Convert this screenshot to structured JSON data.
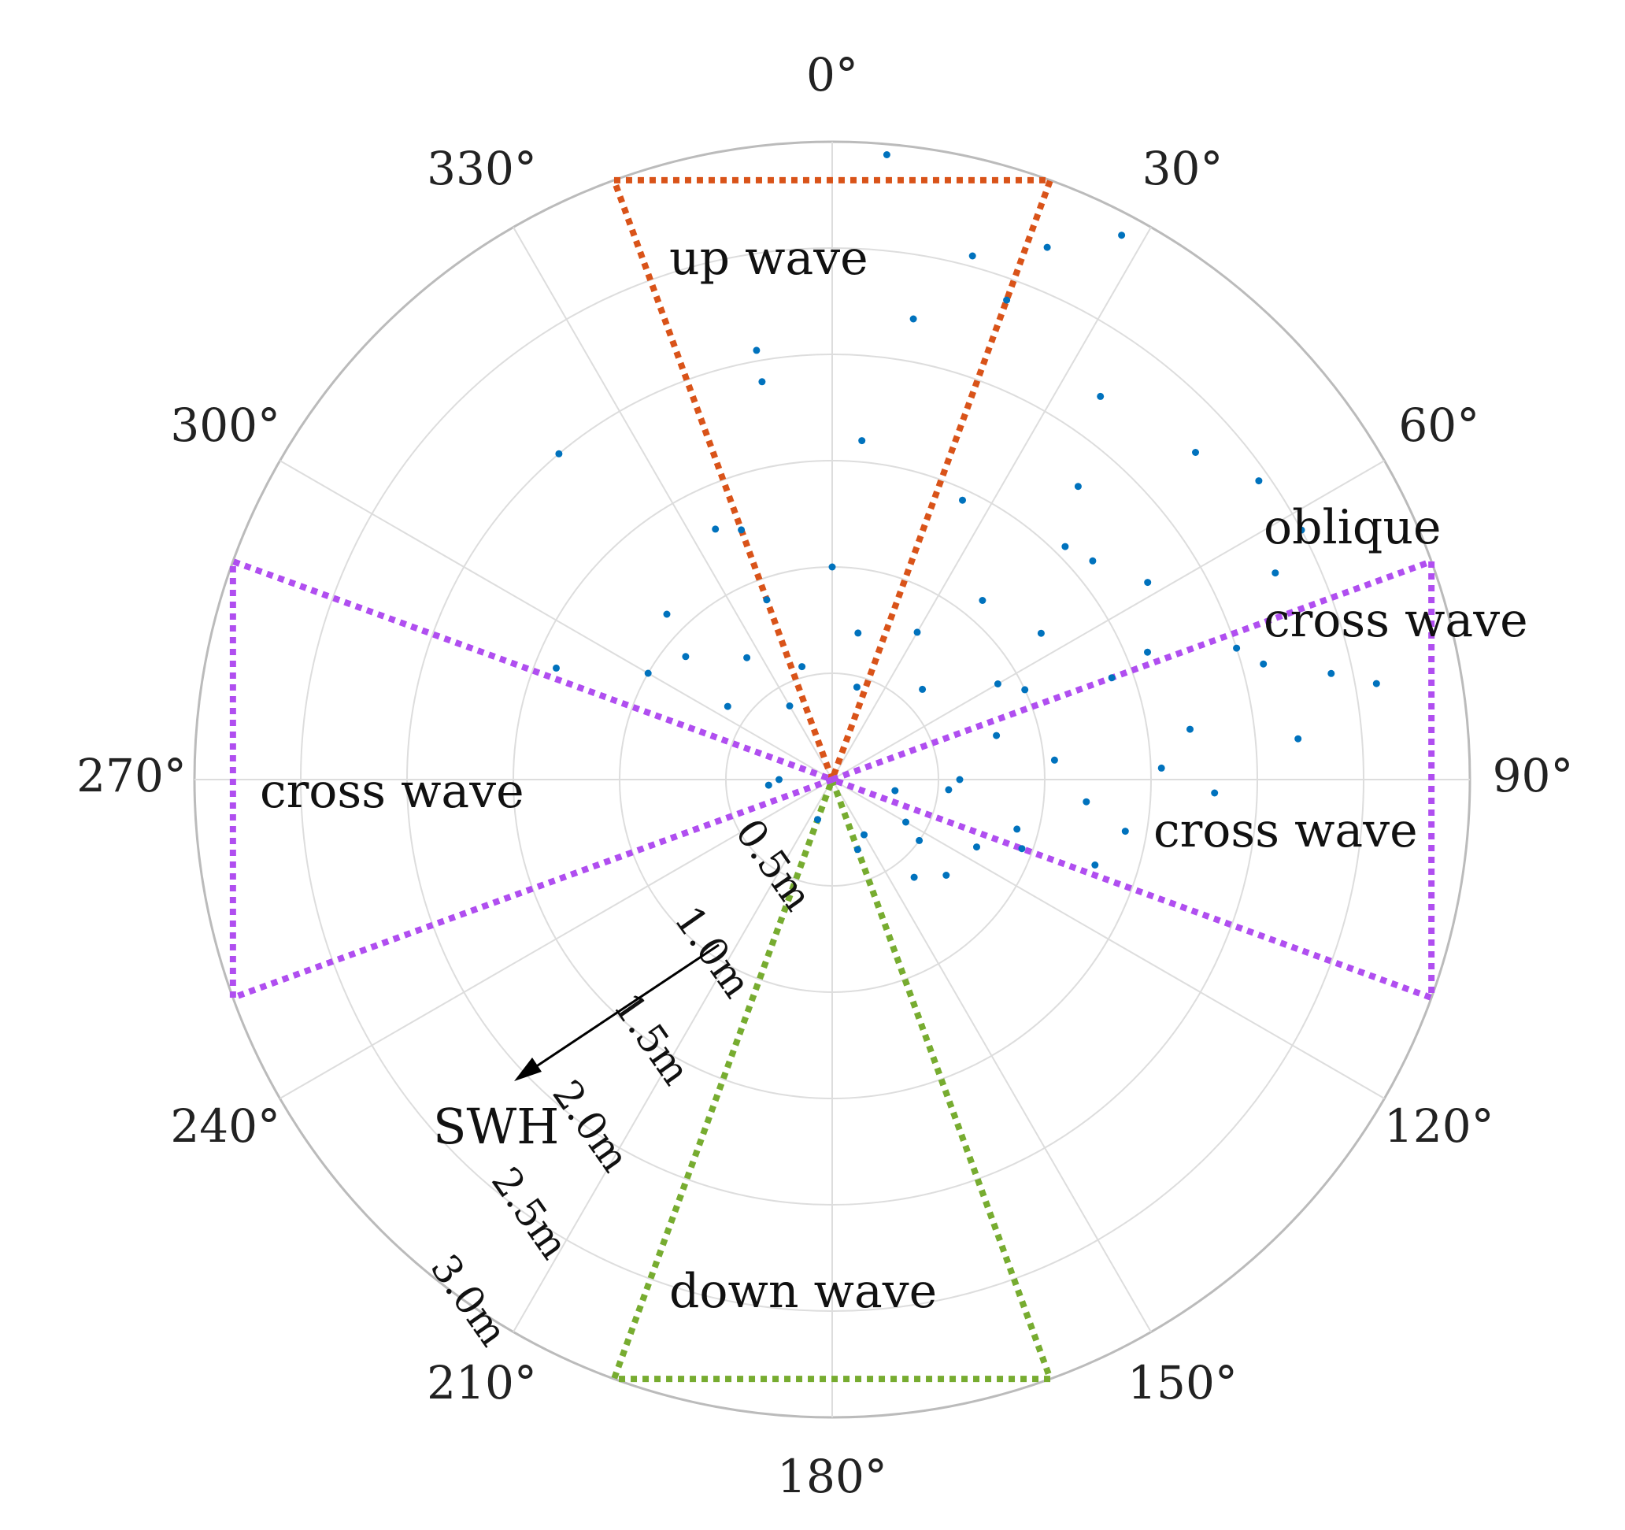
{
  "chart_data": {
    "type": "scatter",
    "projection": "polar",
    "theta_zero": "top",
    "theta_direction": "clockwise",
    "theta_ticks": [
      "0°",
      "30°",
      "60°",
      "90°",
      "120°",
      "150°",
      "180°",
      "210°",
      "240°",
      "270°",
      "300°",
      "330°"
    ],
    "theta_tick_values": [
      0,
      30,
      60,
      90,
      120,
      150,
      180,
      210,
      240,
      270,
      300,
      330
    ],
    "r_ticks": [
      "0.5m",
      "1.0m",
      "1.5m",
      "2.0m",
      "2.5m",
      "3.0m"
    ],
    "r_tick_values": [
      0.5,
      1.0,
      1.5,
      2.0,
      2.5,
      3.0
    ],
    "rlim": [
      0,
      3.0
    ],
    "grid": true,
    "r_axis_arrow_label": "SWH",
    "colors": {
      "points": "#0072BD",
      "up_wave": "#D95319",
      "down_wave": "#77AC30",
      "cross_wave": "#B04EF0",
      "grid": "#dddddd",
      "frame": "#bbbbbb"
    },
    "regions": [
      {
        "name": "up wave",
        "theta_range": [
          -20,
          20
        ],
        "r_max": 3.0,
        "color": "#D95319"
      },
      {
        "name": "down wave",
        "theta_range": [
          160,
          200
        ],
        "r_max": 3.0,
        "color": "#77AC30"
      },
      {
        "name": "cross wave",
        "theta_range": [
          70,
          110
        ],
        "r_max": 3.0,
        "color": "#B04EF0"
      },
      {
        "name": "cross wave",
        "theta_range": [
          250,
          290
        ],
        "r_max": 3.0,
        "color": "#B04EF0"
      }
    ],
    "annotations": [
      "up wave",
      "down wave",
      "cross wave",
      "cross wave",
      "oblique",
      "cross wave"
    ],
    "series": [
      {
        "points": [
          [
            5,
            2.95
          ],
          [
            28,
            2.9
          ],
          [
            22,
            2.7
          ],
          [
            15,
            2.55
          ],
          [
            48,
            2.3
          ],
          [
            55,
            2.45
          ],
          [
            62,
            2.5
          ],
          [
            65,
            2.3
          ],
          [
            72,
            2.0
          ],
          [
            75,
            2.1
          ],
          [
            78,
            2.4
          ],
          [
            80,
            2.6
          ],
          [
            85,
            2.2
          ],
          [
            88,
            1.55
          ],
          [
            95,
            1.2
          ],
          [
            100,
            1.4
          ],
          [
            108,
            1.3
          ],
          [
            115,
            0.75
          ],
          [
            140,
            0.6
          ],
          [
            160,
            0.35
          ],
          [
            200,
            0.2
          ],
          [
            265,
            0.3
          ],
          [
            292,
            1.4
          ],
          [
            300,
            1.0
          ],
          [
            320,
            2.0
          ],
          [
            335,
            1.3
          ],
          [
            340,
            1.25
          ],
          [
            350,
            2.05
          ],
          [
            -10,
            1.9
          ],
          [
            10,
            2.2
          ],
          [
            20,
            2.4
          ],
          [
            35,
            2.2
          ],
          [
            40,
            1.8
          ],
          [
            45,
            1.55
          ],
          [
            50,
            1.6
          ],
          [
            58,
            1.75
          ],
          [
            68,
            1.6
          ],
          [
            70,
            1.4
          ],
          [
            82,
            1.7
          ],
          [
            92,
            1.8
          ],
          [
            105,
            0.9
          ],
          [
            125,
            0.5
          ],
          [
            150,
            0.3
          ],
          [
            310,
            0.9
          ],
          [
            315,
            1.1
          ],
          [
            325,
            0.7
          ],
          [
            0,
            1.0
          ],
          [
            30,
            0.8
          ],
          [
            60,
            0.9
          ],
          [
            90,
            0.6
          ],
          [
            120,
            0.4
          ],
          [
            270,
            0.25
          ],
          [
            345,
            0.55
          ],
          [
            15,
            0.45
          ],
          [
            45,
            0.6
          ],
          [
            75,
            0.8
          ],
          [
            100,
            0.3
          ],
          [
            330,
            0.4
          ],
          [
            5,
            1.6
          ],
          [
            25,
            1.45
          ],
          [
            55,
            1.2
          ],
          [
            85,
            1.05
          ],
          [
            110,
            0.95
          ],
          [
            305,
            0.6
          ],
          [
            340,
            0.9
          ],
          [
            10,
            0.7
          ],
          [
            40,
            1.1
          ],
          [
            65,
            1.0
          ],
          [
            95,
            0.55
          ],
          [
            130,
            0.7
          ]
        ]
      }
    ]
  }
}
